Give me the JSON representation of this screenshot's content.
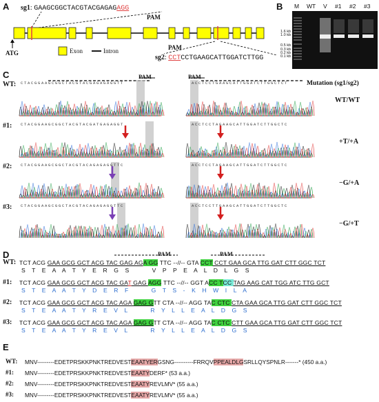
{
  "panels": {
    "a": "A",
    "b": "B",
    "c": "C",
    "d": "D",
    "e": "E"
  },
  "panel_a": {
    "sg1_label": "sg1",
    "sg1_seq": "GAAGCGGCTACGTACGAGAG",
    "sg1_pam": "AGG",
    "pam_label": "PAM",
    "sg2_label": "sg2",
    "sg2_pam": "CCT",
    "sg2_seq": "CCTGAAGCATTGGATCTTGG",
    "atg_label": "ATG",
    "legend_exon": "Exon",
    "legend_intron": "Intron",
    "colors": {
      "exon": "#ffff00",
      "pam": "#e04040"
    }
  },
  "panel_b": {
    "lanes": [
      "M",
      "WT",
      "V",
      "#1",
      "#2",
      "#3"
    ],
    "marker_labels": [
      "1.6 kb",
      "1.0 kb",
      "0.5 kb",
      "0.3 kb",
      "0.2 kb",
      "0.1 kb"
    ]
  },
  "panel_c": {
    "pam_left": "PAM",
    "pam_right": "PAM",
    "mutation_header": "Mutation (sg1/sg2)",
    "rows": [
      {
        "label": "WT:",
        "mutation": "WT/WT",
        "left_seq": "CTACGGAAGCGGCTACGTACGAGAGAGGTT",
        "right_seq": "ACCTCCTGAAGCATTGGATCTTGGCTCT"
      },
      {
        "label": "#1:",
        "mutation": "+T/+A",
        "left_seq": "CTACGGAAGCGGCTACGTACGATGAGAGGT",
        "right_seq": "ACCTCCTAGAAGCATTGGATCTTGGCTC"
      },
      {
        "label": "#2:",
        "mutation": "−G/+A",
        "left_seq": "CTACGGAAGCGGCTACGTACAGAGAGGTTC",
        "right_seq": "ACCTCCTAGAAGCATTGGATCTTGGCTC"
      },
      {
        "label": "#3:",
        "mutation": "−G/+T",
        "left_seq": "CTACGGAAGCGGCTACGTACAGAGAGGTTC",
        "right_seq": "ACCTCCTTGAAGCATTGGATCTTGGCTC"
      }
    ]
  },
  "panel_d": {
    "pam_left": "PAM",
    "pam_right": "PAM",
    "rows": [
      {
        "label": "WT:",
        "nt": [
          "TCT ACG ",
          "GAA GCG GCT ACG TAC GAG AG",
          "A GG",
          " TTC --//-- GTA ",
          "CCT",
          " CCT GAA GCA TTG GAT CTT GGC TCT"
        ],
        "aa": "S    T    E    A    A    T    Y    E    R    G    S              V    P    P    E    A    L    D    L    G    S"
      },
      {
        "label": "#1:",
        "nt": [
          "TCT ACG ",
          "GAA GCG GCT ACG TAC GA",
          "T",
          " GAG ",
          "AGG",
          " TTC --//-- GGT A",
          "CC T",
          "CC ",
          "TAG AAG CAT TGG ATC TTG GCT"
        ],
        "aa": "S    T    E    A    A    T    Y    D    E    R    F              G    T    S    -    K    H    W    I    L    A"
      },
      {
        "label": "#2:",
        "nt": [
          "TCT ACG ",
          "GAA GCG GCT ACG TAC AGA ",
          "GAG G",
          "TT CTA --//-- AGG TA",
          "C CTC ",
          "CTA GAA GCA TTG GAT CTT GGC TCT"
        ],
        "aa": "S    T    E    A    A    T    Y    R    E    V    L              R    Y    L    L    E    A    L    D    G    S"
      },
      {
        "label": "#3:",
        "nt": [
          "TCT ACG ",
          "GAA GCG GCT ACG TAC AGA ",
          "GAG G",
          "TT CTA --//-- AGG TA",
          "C CTC ",
          "CTT GAA GCA TTG GAT CTT GGC TCT"
        ],
        "aa": "S    T    E    A    A    T    Y    R    E    V    L              R    Y    L    L    E    A    L    D    G    S"
      }
    ]
  },
  "panel_e": {
    "rows": [
      {
        "label": "WT:",
        "pre": "MNV---------EDETPRSKKPNKTREDVEST",
        "hl": "EAATYER",
        "mid": "GSNG----------FRRQV",
        "hl2": "PPEALDLG",
        "post": "SRLLQYSPNLR-------* (450 a.a.)"
      },
      {
        "label": "#1:",
        "pre": "MNV---------EDETPRSKKPNKTREDVEST",
        "hl": "EAATY",
        "mid": "DERF* (53 a.a.)",
        "hl2": "",
        "post": ""
      },
      {
        "label": "#2:",
        "pre": "MNV---------EDETPRSKKPNKTREDVEST",
        "hl": "EAATY",
        "mid": "REVLMV* (55 a.a.)",
        "hl2": "",
        "post": ""
      },
      {
        "label": "#3:",
        "pre": "MNV---------EDETPRSKKPNKTREDVEST",
        "hl": "EAATY",
        "mid": "REVLMV* (55 a.a.)",
        "hl2": "",
        "post": ""
      }
    ]
  }
}
